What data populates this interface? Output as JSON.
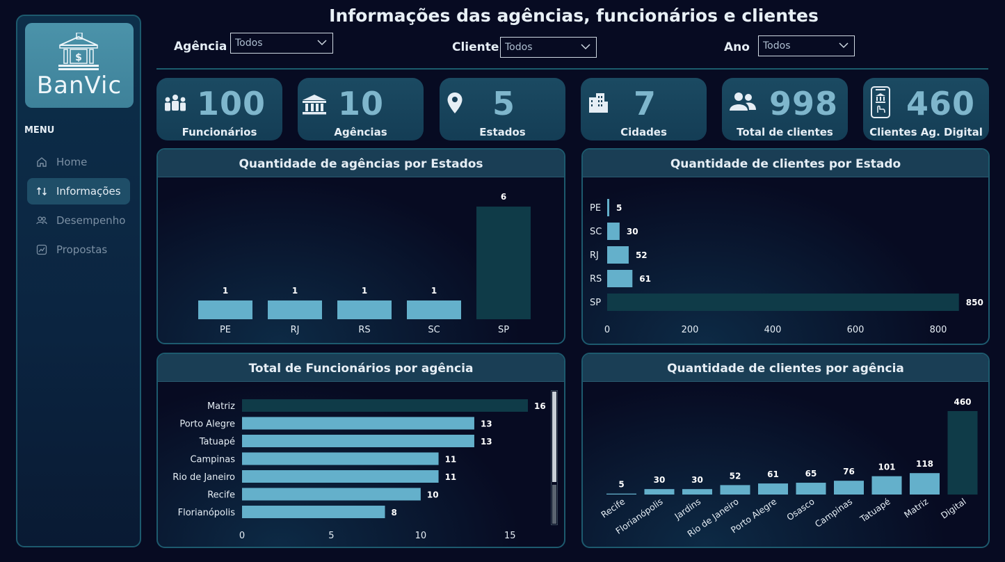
{
  "sidebar": {
    "brand": "BanVic",
    "menu_title": "MENU",
    "items": [
      {
        "label": "Home",
        "icon": "home-icon",
        "active": false
      },
      {
        "label": "Informações",
        "icon": "sort-arrows-icon",
        "active": true
      },
      {
        "label": "Desempenho",
        "icon": "people-icon",
        "active": false
      },
      {
        "label": "Propostas",
        "icon": "chart-trend-icon",
        "active": false
      }
    ]
  },
  "header": {
    "title": "Informações das agências, funcionários e clientes",
    "filters": [
      {
        "label": "Agência",
        "value": "Todos"
      },
      {
        "label": "Cliente",
        "value": "Todos"
      },
      {
        "label": "Ano",
        "value": "Todos"
      }
    ]
  },
  "kpis": [
    {
      "value": "100",
      "label": "Funcionários",
      "icon": "employees-icon"
    },
    {
      "value": "10",
      "label": "Agências",
      "icon": "bank-icon"
    },
    {
      "value": "5",
      "label": "Estados",
      "icon": "map-pin-icon"
    },
    {
      "value": "7",
      "label": "Cidades",
      "icon": "buildings-icon"
    },
    {
      "value": "998",
      "label": "Total de clientes",
      "icon": "users-icon"
    },
    {
      "value": "460",
      "label": "Clientes Ag. Digital",
      "icon": "mobile-bank-icon"
    }
  ],
  "colors": {
    "bar": "#64b0cb",
    "highlight": "#0f3b48",
    "accent": "#7fb6cc",
    "background": "#070b22"
  },
  "chart_data": [
    {
      "type": "bar",
      "title": "Quantidade de agências por Estados",
      "categories": [
        "PE",
        "RJ",
        "RS",
        "SC",
        "SP"
      ],
      "values": [
        1,
        1,
        1,
        1,
        6
      ],
      "highlight": "SP"
    },
    {
      "type": "bar",
      "orientation": "horizontal",
      "title": "Quantidade de clientes por Estado",
      "categories": [
        "PE",
        "SC",
        "RJ",
        "RS",
        "SP"
      ],
      "values": [
        5,
        30,
        52,
        61,
        850
      ],
      "xticks": [
        "0",
        "200",
        "400",
        "600",
        "800"
      ],
      "xlim": [
        0,
        880
      ],
      "highlight": "SP"
    },
    {
      "type": "bar",
      "orientation": "horizontal",
      "title": "Total de Funcionários por agência",
      "categories": [
        "Matriz",
        "Porto Alegre",
        "Tatuapé",
        "Campinas",
        "Rio de Janeiro",
        "Recife",
        "Florianópolis"
      ],
      "values": [
        16,
        13,
        13,
        11,
        11,
        10,
        8
      ],
      "xticks": [
        "0",
        "5",
        "10",
        "15"
      ],
      "xlim": [
        0,
        16
      ],
      "highlight": "Matriz"
    },
    {
      "type": "bar",
      "title": "Quantidade de clientes por agência",
      "categories": [
        "Recife",
        "Florianópolis",
        "Jardins",
        "Rio de Janeiro",
        "Porto Alegre",
        "Osasco",
        "Campinas",
        "Tatuapé",
        "Matriz",
        "Digital"
      ],
      "values": [
        5,
        30,
        30,
        52,
        61,
        65,
        76,
        101,
        118,
        460
      ],
      "highlight": "Digital"
    }
  ]
}
